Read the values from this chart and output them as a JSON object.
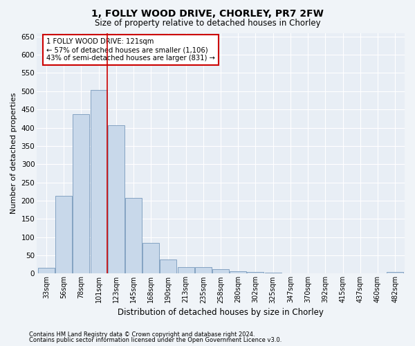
{
  "title": "1, FOLLY WOOD DRIVE, CHORLEY, PR7 2FW",
  "subtitle": "Size of property relative to detached houses in Chorley",
  "xlabel": "Distribution of detached houses by size in Chorley",
  "ylabel": "Number of detached properties",
  "bar_color": "#c8d8ea",
  "bar_edge_color": "#7799bb",
  "background_color": "#e8eef5",
  "grid_color": "#ffffff",
  "fig_facecolor": "#f0f4f8",
  "categories": [
    "33sqm",
    "56sqm",
    "78sqm",
    "101sqm",
    "123sqm",
    "145sqm",
    "168sqm",
    "190sqm",
    "213sqm",
    "235sqm",
    "258sqm",
    "280sqm",
    "302sqm",
    "325sqm",
    "347sqm",
    "370sqm",
    "392sqm",
    "415sqm",
    "437sqm",
    "460sqm",
    "482sqm"
  ],
  "values": [
    15,
    213,
    437,
    504,
    407,
    207,
    84,
    38,
    18,
    17,
    12,
    7,
    5,
    2,
    1,
    1,
    0,
    0,
    0,
    0,
    5
  ],
  "ylim": [
    0,
    660
  ],
  "yticks": [
    0,
    50,
    100,
    150,
    200,
    250,
    300,
    350,
    400,
    450,
    500,
    550,
    600,
    650
  ],
  "vline_x": 3.5,
  "vline_color": "#cc0000",
  "annotation_text": "1 FOLLY WOOD DRIVE: 121sqm\n← 57% of detached houses are smaller (1,106)\n43% of semi-detached houses are larger (831) →",
  "footnote1": "Contains HM Land Registry data © Crown copyright and database right 2024.",
  "footnote2": "Contains public sector information licensed under the Open Government Licence v3.0."
}
